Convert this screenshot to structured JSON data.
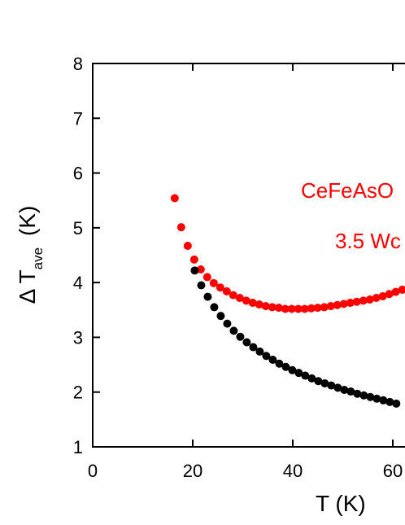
{
  "chart_data": {
    "type": "scatter",
    "xlabel": "T (K)",
    "ylabel": {
      "main": "Δ T",
      "sub": "ave",
      "unit": "(K)"
    },
    "xlim": [
      0,
      65
    ],
    "ylim": [
      1,
      8
    ],
    "xticks": [
      "0",
      "20",
      "40",
      "60"
    ],
    "yticks": [
      "1",
      "2",
      "3",
      "4",
      "5",
      "6",
      "7",
      "8"
    ],
    "grid": false,
    "annotations": [
      "CeFeAsO",
      "3.5 Wc"
    ],
    "series": [
      {
        "color": "#ff0000",
        "x": [
          16.4,
          17.7,
          19.0,
          20.3,
          21.6,
          22.9,
          24.2,
          25.5,
          26.8,
          28.1,
          29.4,
          30.7,
          32.0,
          33.3,
          34.6,
          35.9,
          37.2,
          38.5,
          39.8,
          41.1,
          42.4,
          43.7,
          45.0,
          46.3,
          47.6,
          48.9,
          50.2,
          51.5,
          52.8,
          54.1,
          55.4,
          56.7,
          58.0,
          59.3,
          60.6,
          61.9,
          63.2
        ],
        "y": [
          5.54,
          5.01,
          4.67,
          4.42,
          4.24,
          4.1,
          3.99,
          3.91,
          3.84,
          3.77,
          3.72,
          3.67,
          3.63,
          3.6,
          3.57,
          3.55,
          3.54,
          3.52,
          3.52,
          3.52,
          3.52,
          3.53,
          3.54,
          3.55,
          3.57,
          3.59,
          3.61,
          3.63,
          3.65,
          3.67,
          3.69,
          3.72,
          3.75,
          3.79,
          3.83,
          3.87,
          3.91
        ]
      },
      {
        "color": "#000000",
        "x": [
          20.4,
          21.7,
          23.0,
          24.3,
          25.6,
          26.9,
          28.2,
          29.5,
          30.8,
          32.1,
          33.4,
          34.7,
          36.0,
          37.3,
          38.6,
          39.9,
          41.2,
          42.5,
          43.8,
          45.1,
          46.4,
          47.7,
          49.0,
          50.3,
          51.6,
          52.9,
          54.2,
          55.5,
          56.8,
          58.1,
          59.4,
          60.7,
          62.0,
          63.3
        ],
        "y": [
          4.22,
          3.95,
          3.74,
          3.55,
          3.39,
          3.25,
          3.12,
          3.01,
          2.91,
          2.82,
          2.74,
          2.66,
          2.59,
          2.52,
          2.46,
          2.4,
          2.35,
          2.3,
          2.25,
          2.2,
          2.16,
          2.12,
          2.08,
          2.04,
          2.01,
          1.97,
          1.94,
          1.91,
          1.88,
          1.85,
          1.82,
          1.79,
          1.76,
          1.73
        ]
      }
    ]
  }
}
